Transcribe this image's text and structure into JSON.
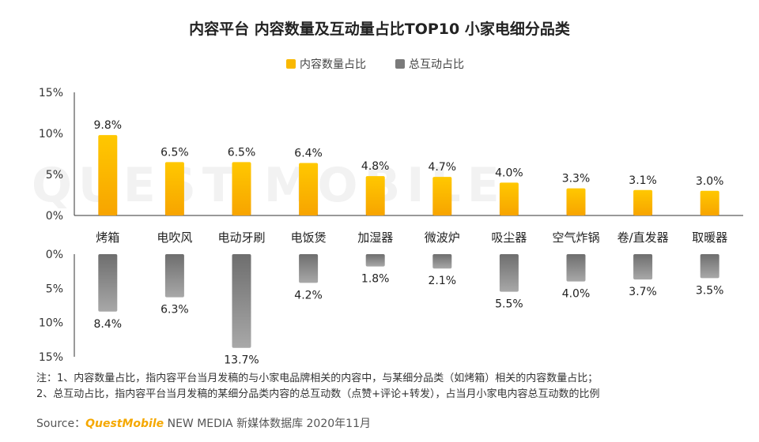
{
  "chart_data": {
    "type": "bar",
    "title": "内容平台 内容数量及互动量占比TOP10 小家电细分品类",
    "categories": [
      "烤箱",
      "电吹风",
      "电动牙刷",
      "电饭煲",
      "加湿器",
      "微波炉",
      "吸尘器",
      "空气炸锅",
      "卷/直发器",
      "取暖器"
    ],
    "series": [
      {
        "name": "内容数量占比",
        "color": "#f9b800",
        "values": [
          9.8,
          6.5,
          6.5,
          6.4,
          4.8,
          4.7,
          4.0,
          3.3,
          3.1,
          3.0
        ],
        "labels": [
          "9.8%",
          "6.5%",
          "6.5%",
          "6.4%",
          "4.8%",
          "4.7%",
          "4.0%",
          "3.3%",
          "3.1%",
          "3.0%"
        ]
      },
      {
        "name": "总互动占比",
        "color": "#7a7a7a",
        "values": [
          8.4,
          6.3,
          13.7,
          4.2,
          1.8,
          2.1,
          5.5,
          4.0,
          3.7,
          3.5
        ],
        "labels": [
          "8.4%",
          "6.3%",
          "13.7%",
          "4.2%",
          "1.8%",
          "2.1%",
          "5.5%",
          "4.0%",
          "3.7%",
          "3.5%"
        ]
      }
    ],
    "top_axis": {
      "ylim": [
        0,
        15
      ],
      "ticks": [
        "15%",
        "10%",
        "5%",
        "0%"
      ],
      "tick_values": [
        15,
        10,
        5,
        0
      ]
    },
    "bottom_axis": {
      "ylim": [
        0,
        15
      ],
      "ticks": [
        "0%",
        "5%",
        "10%",
        "15%"
      ],
      "tick_values": [
        0,
        5,
        10,
        15
      ]
    }
  },
  "legend": [
    {
      "label": "内容数量占比",
      "color": "#f9b800"
    },
    {
      "label": "总互动占比",
      "color": "#7a7a7a"
    }
  ],
  "notes": [
    "注：1、内容数量占比，指内容平台当月发稿的与小家电品牌相关的内容中，与某细分品类（如烤箱）相关的内容数量占比；",
    "2、总互动占比，指内容平台当月发稿的某细分品类内容的总互动数（点赞+评论+转发），占当月小家电内容总互动数的比例"
  ],
  "source": {
    "prefix": "Source：",
    "brand": "QuestMobile",
    "rest": " NEW MEDIA 新媒体数据库 2020年11月"
  },
  "watermark": "QUEST MOBILE"
}
